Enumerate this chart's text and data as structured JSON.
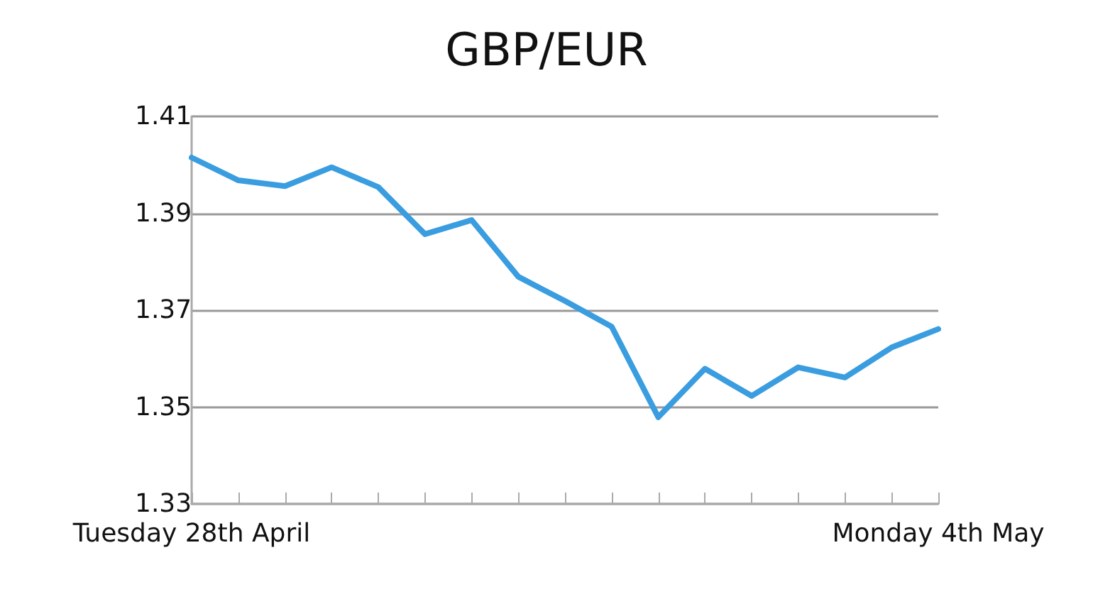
{
  "chart_data": {
    "type": "line",
    "title": "GBP/EUR",
    "categories": [
      "Tuesday 28th April",
      null,
      null,
      null,
      null,
      null,
      null,
      null,
      null,
      null,
      null,
      null,
      null,
      null,
      null,
      null,
      "Monday 4th May"
    ],
    "values": [
      1.4015,
      1.3968,
      1.3956,
      1.3995,
      1.3954,
      1.3857,
      1.3886,
      1.3769,
      1.3719,
      1.3666,
      1.3479,
      1.3579,
      1.3523,
      1.3582,
      1.3561,
      1.3623,
      1.3661
    ],
    "color": "#3a9de0",
    "ylim": [
      1.33,
      1.41
    ],
    "yticks": [
      1.33,
      1.35,
      1.37,
      1.39,
      1.41
    ],
    "grid": "y",
    "marker": "none",
    "line_style": "solid"
  }
}
